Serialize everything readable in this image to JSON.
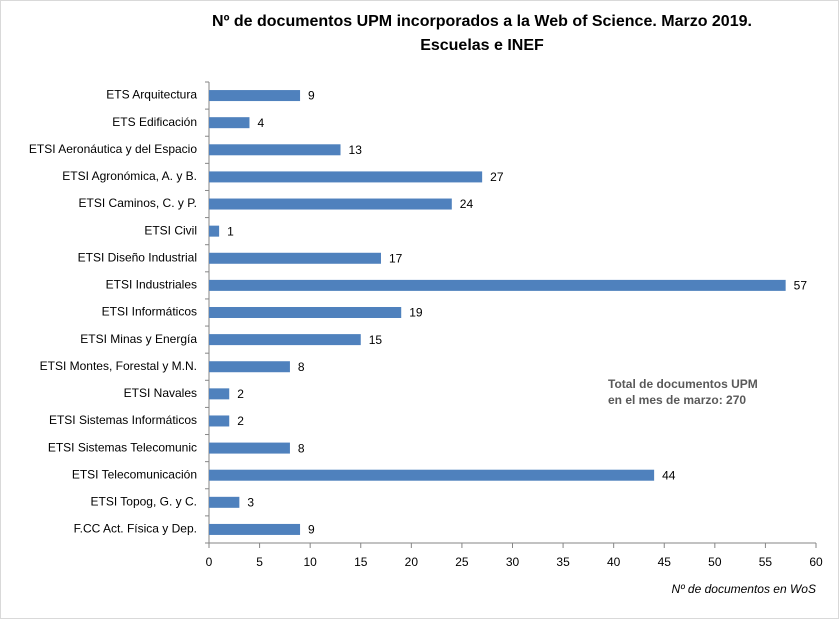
{
  "chart_data": {
    "type": "bar",
    "orientation": "horizontal",
    "title": [
      "Nº de documentos UPM incorporados a la Web of Science. Marzo 2019.",
      "Escuelas e INEF"
    ],
    "categories": [
      "ETS Arquitectura",
      "ETS Edificación",
      "ETSI Aeronáutica y del Espacio",
      "ETSI Agronómica, A. y B.",
      "ETSI Caminos, C. y P.",
      "ETSI Civil",
      "ETSI Diseño Industrial",
      "ETSI Industriales",
      "ETSI Informáticos",
      "ETSI Minas y Energía",
      "ETSI Montes, Forestal y M.N.",
      "ETSI Navales",
      "ETSI Sistemas Informáticos",
      "ETSI Sistemas Telecomunic",
      "ETSI Telecomunicación",
      "ETSI Topog, G. y C.",
      "F.CC Act. Física y Dep."
    ],
    "values": [
      9,
      4,
      13,
      27,
      24,
      1,
      17,
      57,
      19,
      15,
      8,
      2,
      2,
      8,
      44,
      3,
      9
    ],
    "color": "#4f81bd",
    "xlim": [
      0,
      60
    ],
    "xticks": [
      0,
      5,
      10,
      15,
      20,
      25,
      30,
      35,
      40,
      45,
      50,
      55,
      60
    ],
    "xlabel": "Nº de documentos en WoS",
    "annotation": [
      "Total de documentos  UPM",
      "en el mes de marzo: 270"
    ],
    "grid": false
  }
}
